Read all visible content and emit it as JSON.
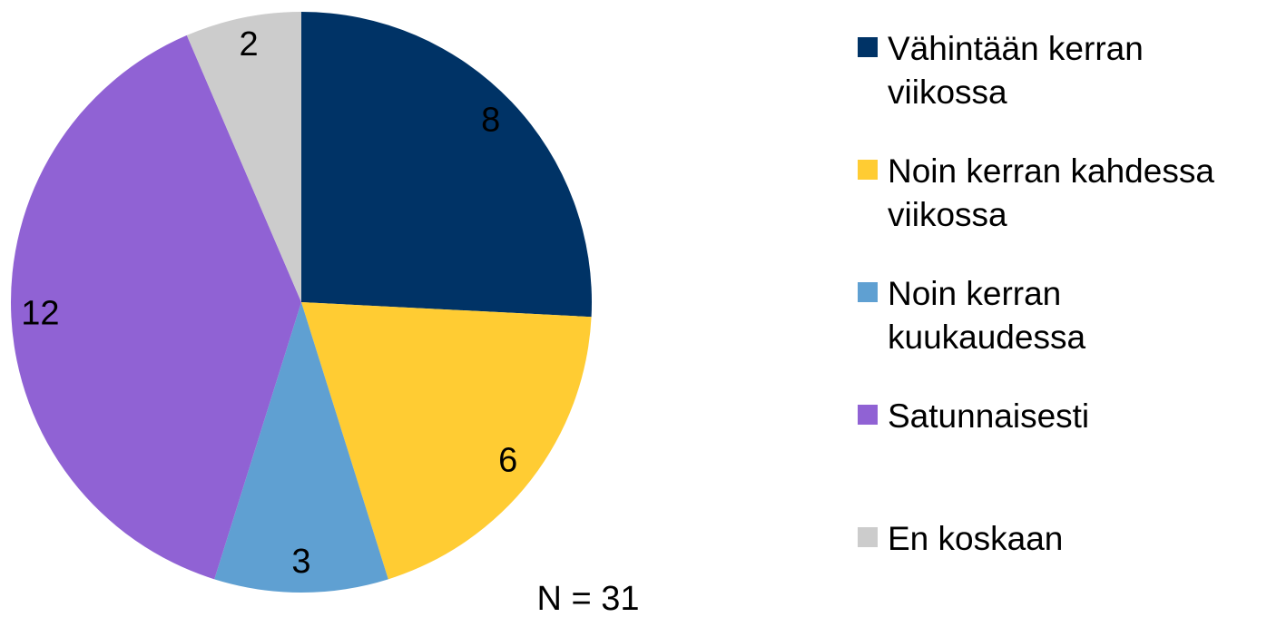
{
  "chart_data": {
    "type": "pie",
    "categories": [
      "Vähintään kerran viikossa",
      "Noin kerran kahdessa viikossa",
      "Noin kerran kuukaudessa",
      "Satunnaisesti",
      "En koskaan"
    ],
    "values": [
      8,
      6,
      3,
      12,
      2
    ],
    "colors": [
      "#003366",
      "#ffcc33",
      "#5fa0d2",
      "#9062d4",
      "#cccccc"
    ],
    "annotation": "N = 31"
  }
}
